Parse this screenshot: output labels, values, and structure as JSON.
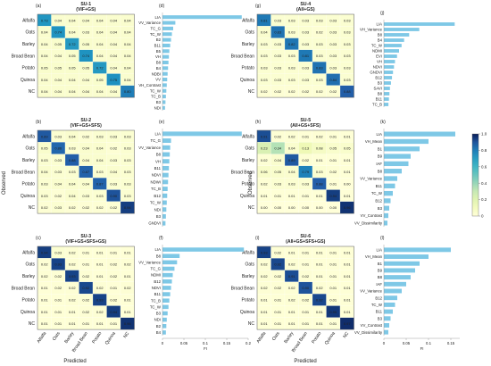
{
  "chart_data": {
    "type": "heatmap",
    "panels": [
      {
        "letter": "(a)",
        "title": [
          "SU-1",
          "(VIF+GS)"
        ],
        "rows": [
          "Alfalfa",
          "Oats",
          "Barley",
          "Broad Bean",
          "Potato",
          "Quinoa",
          "NC"
        ],
        "cols": [
          "Alfalfa",
          "Oats",
          "Barley",
          "Broad Bean",
          "Potato",
          "Quinoa",
          "NC"
        ],
        "values": [
          [
            0.73,
            0.04,
            0.04,
            0.04,
            0.04,
            0.04,
            0.04
          ],
          [
            0.04,
            0.74,
            0.04,
            0.03,
            0.04,
            0.04,
            0.04
          ],
          [
            0.04,
            0.05,
            0.72,
            0.05,
            0.04,
            0.04,
            0.04
          ],
          [
            0.04,
            0.04,
            0.05,
            0.74,
            0.04,
            0.04,
            0.04
          ],
          [
            0.05,
            0.05,
            0.05,
            0.05,
            0.72,
            0.04,
            0.04
          ],
          [
            0.04,
            0.04,
            0.04,
            0.04,
            0.05,
            0.75,
            0.04
          ],
          [
            0.04,
            0.04,
            0.04,
            0.04,
            0.04,
            0.04,
            0.8
          ]
        ]
      },
      {
        "letter": "(b)",
        "title": [
          "SU-2",
          "(VIF+GS+SFS)"
        ],
        "rows": [
          "Alfalfa",
          "Oats",
          "Barley",
          "Broad Bean",
          "Potato",
          "Quinoa",
          "NC"
        ],
        "cols": [
          "Alfalfa",
          "Oats",
          "Barley",
          "Broad Bean",
          "Potato",
          "Quinoa",
          "NC"
        ],
        "values": [
          [
            0.89,
            0.03,
            0.04,
            0.02,
            0.03,
            0.03,
            0.03
          ],
          [
            0.05,
            0.86,
            0.03,
            0.04,
            0.04,
            0.02,
            0.03
          ],
          [
            0.03,
            0.03,
            0.88,
            0.04,
            0.04,
            0.03,
            0.03
          ],
          [
            0.04,
            0.03,
            0.03,
            0.87,
            0.03,
            0.04,
            0.03
          ],
          [
            0.03,
            0.04,
            0.04,
            0.04,
            0.87,
            0.03,
            0.03
          ],
          [
            0.03,
            0.02,
            0.04,
            0.03,
            0.03,
            0.9,
            0.03
          ],
          [
            0.02,
            0.03,
            0.02,
            0.02,
            0.02,
            0.02,
            0.94
          ]
        ]
      },
      {
        "letter": "(c)",
        "title": [
          "SU-3",
          "(VIF+GS+SFS+GS)"
        ],
        "rows": [
          "Alfalfa",
          "Oats",
          "Barley",
          "Broad Bean",
          "Potato",
          "Quinoa",
          "NC"
        ],
        "cols": [
          "Alfalfa",
          "Oats",
          "Barley",
          "Broad Bean",
          "Potato",
          "Quinoa",
          "NC"
        ],
        "values": [
          [
            0.94,
            0.03,
            0.02,
            0.01,
            0.01,
            0.01,
            0.01
          ],
          [
            0.02,
            0.93,
            0.02,
            0.01,
            0.01,
            0.02,
            0.02
          ],
          [
            0.02,
            0.02,
            0.93,
            0.02,
            0.01,
            0.02,
            0.01
          ],
          [
            0.01,
            0.02,
            0.02,
            0.92,
            0.02,
            0.01,
            0.02
          ],
          [
            0.01,
            0.01,
            0.02,
            0.02,
            0.93,
            0.02,
            0.01
          ],
          [
            0.01,
            0.01,
            0.01,
            0.02,
            0.02,
            0.94,
            0.01
          ],
          [
            0.01,
            0.01,
            0.01,
            0.01,
            0.01,
            0.01,
            0.96
          ]
        ]
      },
      {
        "letter": "(g)",
        "title": [
          "SU-4",
          "(All+GS)"
        ],
        "rows": [
          "Alfalfa",
          "Oats",
          "Barley",
          "Broad Bean",
          "Potato",
          "Quinoa",
          "NC"
        ],
        "cols": [
          "Alfalfa",
          "Oats",
          "Barley",
          "Broad Bean",
          "Potato",
          "Quinoa",
          "NC"
        ],
        "values": [
          [
            0.81,
            0.03,
            0.03,
            0.03,
            0.03,
            0.03,
            0.03
          ],
          [
            0.04,
            0.83,
            0.03,
            0.03,
            0.02,
            0.03,
            0.03
          ],
          [
            0.03,
            0.03,
            0.82,
            0.03,
            0.03,
            0.03,
            0.03
          ],
          [
            0.03,
            0.03,
            0.03,
            0.81,
            0.03,
            0.03,
            0.03
          ],
          [
            0.03,
            0.03,
            0.03,
            0.03,
            0.83,
            0.03,
            0.03
          ],
          [
            0.03,
            0.03,
            0.03,
            0.03,
            0.03,
            0.84,
            0.03
          ],
          [
            0.02,
            0.02,
            0.02,
            0.02,
            0.02,
            0.02,
            0.88
          ]
        ]
      },
      {
        "letter": "(h)",
        "title": [
          "SU-5",
          "(All+GS+SFS)"
        ],
        "rows": [
          "Alfalfa",
          "Oats",
          "Barley",
          "Broad Bean",
          "Potato",
          "Quinoa",
          "NC"
        ],
        "cols": [
          "Alfalfa",
          "Oats",
          "Barley",
          "Broad Bean",
          "Potato",
          "Quinoa",
          "NC"
        ],
        "values": [
          [
            0.91,
            0.02,
            0.02,
            0.01,
            0.02,
            0.01,
            0.01
          ],
          [
            0.23,
            0.34,
            0.04,
            0.13,
            0.08,
            0.05,
            0.05
          ],
          [
            0.02,
            0.04,
            0.89,
            0.02,
            0.01,
            0.01,
            0.01
          ],
          [
            0.06,
            0.05,
            0.04,
            0.79,
            0.03,
            0.02,
            0.01
          ],
          [
            0.02,
            0.03,
            0.03,
            0.03,
            0.88,
            0.01,
            0.0
          ],
          [
            0.01,
            0.01,
            0.01,
            0.01,
            0.01,
            0.94,
            0.01
          ],
          [
            0.0,
            0.0,
            0.0,
            0.0,
            0.0,
            0.0,
            0.96
          ]
        ]
      },
      {
        "letter": "(i)",
        "title": [
          "SU-6",
          "(All+GS+SFS+GS)"
        ],
        "rows": [
          "Alfalfa",
          "Oats",
          "Barley",
          "Broad Bean",
          "Potato",
          "Quinoa",
          "NC"
        ],
        "cols": [
          "Alfalfa",
          "Oats",
          "Barley",
          "Broad Bean",
          "Potato",
          "Quinoa",
          "NC"
        ],
        "values": [
          [
            0.93,
            0.02,
            0.01,
            0.01,
            0.01,
            0.01,
            0.01
          ],
          [
            0.02,
            0.92,
            0.02,
            0.01,
            0.01,
            0.01,
            0.01
          ],
          [
            0.02,
            0.02,
            0.91,
            0.02,
            0.01,
            0.01,
            0.01
          ],
          [
            0.02,
            0.02,
            0.02,
            0.9,
            0.02,
            0.01,
            0.01
          ],
          [
            0.01,
            0.01,
            0.02,
            0.02,
            0.92,
            0.01,
            0.01
          ],
          [
            0.01,
            0.01,
            0.01,
            0.01,
            0.01,
            0.95,
            0.01
          ],
          [
            0.01,
            0.01,
            0.01,
            0.01,
            0.01,
            0.01,
            0.97
          ]
        ]
      }
    ],
    "importance": [
      {
        "letter": "(d)",
        "categories": [
          "LIA",
          "VV_Variance",
          "TC_G",
          "TC_W",
          "B2",
          "B11",
          "B5",
          "VH",
          "B8",
          "B4",
          "NDBI",
          "VV",
          "VH_Contrast",
          "TC_W",
          "TC_B",
          "B3",
          "NDI"
        ],
        "values": [
          0.185,
          0.03,
          0.025,
          0.022,
          0.02,
          0.018,
          0.016,
          0.015,
          0.014,
          0.013,
          0.012,
          0.011,
          0.01,
          0.009,
          0.008,
          0.007,
          0.006
        ]
      },
      {
        "letter": "(e)",
        "categories": [
          "LIA",
          "TC_G",
          "VV_Variance",
          "B8",
          "VH",
          "B11",
          "NDVI",
          "NDWI",
          "TC_B",
          "B12",
          "TC_W",
          "NDI",
          "B3",
          "GNDVI"
        ],
        "values": [
          0.185,
          0.02,
          0.018,
          0.017,
          0.016,
          0.015,
          0.014,
          0.013,
          0.012,
          0.011,
          0.01,
          0.009,
          0.008,
          0.007
        ]
      },
      {
        "letter": "(f)",
        "categories": [
          "LIA",
          "B8",
          "VV_Variance",
          "TC_G",
          "NDMI",
          "B12",
          "NDVI",
          "B11",
          "TC_B",
          "TC_W",
          "B3",
          "NDI",
          "B2",
          "B4"
        ],
        "values": [
          0.19,
          0.04,
          0.034,
          0.028,
          0.024,
          0.022,
          0.02,
          0.018,
          0.016,
          0.014,
          0.012,
          0.01,
          0.009,
          0.008
        ]
      },
      {
        "letter": "(j)",
        "categories": [
          "LIA",
          "VH_Variance",
          "B8",
          "B4",
          "TC_W",
          "NDMI",
          "EVI",
          "VH",
          "NDVI",
          "GNDVI",
          "B12",
          "B3",
          "SAVI",
          "B8",
          "B11",
          "TC_B"
        ],
        "values": [
          0.14,
          0.07,
          0.05,
          0.04,
          0.035,
          0.03,
          0.026,
          0.022,
          0.02,
          0.018,
          0.016,
          0.014,
          0.012,
          0.011,
          0.01,
          0.009
        ]
      },
      {
        "letter": "(k)",
        "categories": [
          "LIA",
          "VH_Mean",
          "B1",
          "B9",
          "IAF",
          "B8",
          "VV_Variance",
          "B11",
          "TC_W",
          "B12",
          "B3",
          "VV_Contrast",
          "VV_Dissimilarity"
        ],
        "values": [
          0.16,
          0.1,
          0.08,
          0.06,
          0.055,
          0.04,
          0.03,
          0.025,
          0.02,
          0.015,
          0.012,
          0.01,
          0.008
        ]
      },
      {
        "letter": "(l)",
        "categories": [
          "LIA",
          "VH_Mean",
          "B1",
          "B9",
          "B8",
          "IAF",
          "VV_Variance",
          "B12",
          "TC_W",
          "B11",
          "B3",
          "VV_Contrast",
          "VV_Dissimilarity"
        ],
        "values": [
          0.15,
          0.1,
          0.08,
          0.07,
          0.06,
          0.05,
          0.04,
          0.03,
          0.025,
          0.02,
          0.015,
          0.012,
          0.01
        ]
      }
    ],
    "importance_ticks": {
      "left": [
        "0",
        "0.05",
        "0.1",
        "0.15",
        "0.2"
      ],
      "right": [
        "0",
        "0.05",
        "0.1",
        "0.15"
      ]
    },
    "fi_label": "FI",
    "ylabel": "Observed",
    "xlabel": "Predicted",
    "colorbar": {
      "min": 0,
      "max": 1.0,
      "ticks": [
        "0",
        "0.2",
        "0.4",
        "0.6",
        "0.8",
        "1.0"
      ]
    },
    "colors": {
      "bar": "#7ec8e6",
      "cmap_low": "#ffffcc",
      "cmap_mid": "#41b6c4",
      "cmap_high": "#081d58"
    }
  }
}
